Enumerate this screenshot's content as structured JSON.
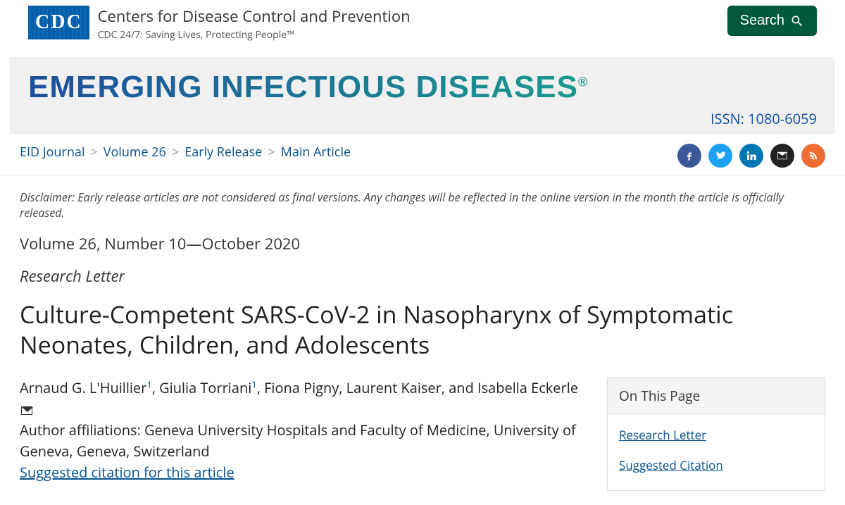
{
  "header": {
    "logo_badge": "CDC",
    "org_title": "Centers for Disease Control and Prevention",
    "org_tagline": "CDC 24/7: Saving Lives, Protecting People™",
    "search_label": "Search"
  },
  "banner": {
    "title": "EMERGING INFECTIOUS DISEASES",
    "reg_mark": "®",
    "issn_label": "ISSN: 1080-6059",
    "title_gradient_start": "#1d4f9c",
    "title_gradient_end": "#1a9b8e"
  },
  "breadcrumb": {
    "items": [
      "EID Journal",
      "Volume 26",
      "Early Release",
      "Main Article"
    ],
    "separator": ">"
  },
  "share": {
    "icons": [
      "facebook",
      "twitter",
      "linkedin",
      "email",
      "syndicate"
    ]
  },
  "article": {
    "disclaimer": "Disclaimer: Early release articles are not considered as final versions. Any changes will be reflected in the online version in the month the article is officially released.",
    "volume_line": "Volume 26, Number 10—October 2020",
    "type": "Research Letter",
    "title": "Culture-Competent SARS-CoV-2 in Nasopharynx of Symptomatic Neonates, Children, and Adolescents",
    "authors_html_parts": {
      "a1": "Arnaud G. L'Huillier",
      "sup1": "1",
      "sep1": ", ",
      "a2": "Giulia Torriani",
      "sup2": "1",
      "rest": ", Fiona Pigny, Laurent Kaiser, and Isabella Eckerle"
    },
    "affiliation": "Author affiliations: Geneva University Hospitals and Faculty of Medicine, University of Geneva, Geneva, Switzerland",
    "citation_link": "Suggested citation for this article"
  },
  "sidebar": {
    "header": "On This Page",
    "links": [
      "Research Letter",
      "Suggested Citation"
    ]
  },
  "colors": {
    "link": "#075290",
    "search_bg": "#005a3a",
    "banner_bg": "#f0f0f0"
  }
}
